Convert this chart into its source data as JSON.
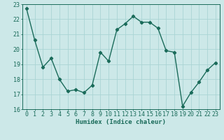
{
  "x": [
    0,
    1,
    2,
    3,
    4,
    5,
    6,
    7,
    8,
    9,
    10,
    11,
    12,
    13,
    14,
    15,
    16,
    17,
    18,
    19,
    20,
    21,
    22,
    23
  ],
  "y": [
    22.7,
    20.6,
    18.8,
    19.4,
    18.0,
    17.2,
    17.3,
    17.1,
    17.6,
    19.8,
    19.2,
    21.3,
    21.7,
    22.2,
    21.8,
    21.8,
    21.4,
    19.9,
    19.8,
    16.2,
    17.1,
    17.8,
    18.6,
    19.1
  ],
  "line_color": "#1a6b5a",
  "marker": "D",
  "marker_size": 2.2,
  "bg_color": "#cce8e8",
  "grid_color": "#aad4d4",
  "xlabel": "Humidex (Indice chaleur)",
  "xlim": [
    -0.5,
    23.5
  ],
  "ylim": [
    16,
    23
  ],
  "xticks": [
    0,
    1,
    2,
    3,
    4,
    5,
    6,
    7,
    8,
    9,
    10,
    11,
    12,
    13,
    14,
    15,
    16,
    17,
    18,
    19,
    20,
    21,
    22,
    23
  ],
  "yticks": [
    16,
    17,
    18,
    19,
    20,
    21,
    22,
    23
  ],
  "xlabel_fontsize": 6.5,
  "tick_fontsize": 6,
  "line_width": 1.0
}
